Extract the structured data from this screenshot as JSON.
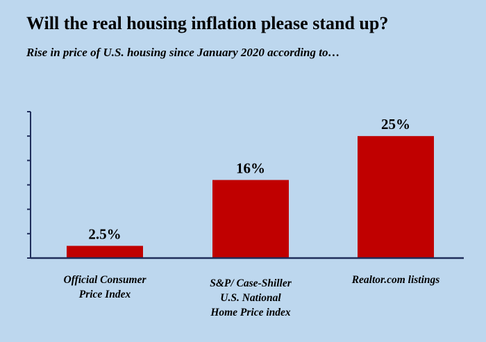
{
  "chart_data": {
    "type": "bar",
    "title": "Will the real housing inflation please stand up?",
    "subtitle": "Rise in price of U.S. housing since January 2020 according to…",
    "categories": [
      "Official Consumer Price Index",
      "S&P/ Case-Shiller U.S. National Home Price index",
      "Realtor.com listings"
    ],
    "values": [
      2.5,
      16,
      25
    ],
    "value_labels": [
      "2.5%",
      "16%",
      "25%"
    ],
    "color": "#c00000",
    "ylim": [
      0,
      30
    ],
    "yticks": [
      0,
      5,
      10,
      15,
      20,
      25,
      30
    ]
  }
}
